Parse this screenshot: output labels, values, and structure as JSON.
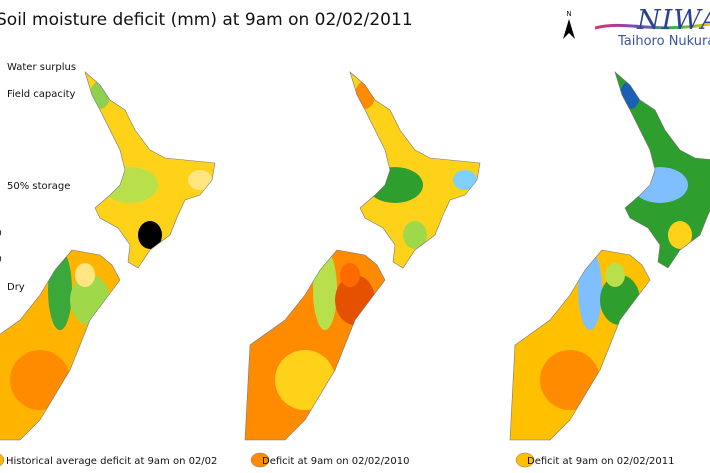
{
  "title": "Soil moisture deficit (mm) at  9am on 02/02/2011",
  "legend": {
    "items": [
      "Water surplus",
      "Field capacity",
      "50% storage",
      "Dry"
    ],
    "partial_ticks": [
      "0",
      "0"
    ]
  },
  "logo": {
    "brand": "NIWA",
    "tagline": "Taihoro Nukurangi",
    "north_label": "N"
  },
  "maps": [
    {
      "caption": "Historical average deficit at 9am on 02/02",
      "ni_base": "#ffd21a",
      "si_base": "#ffb400",
      "ni_patches": [
        "#b8e04a",
        "#ffe680",
        "#8fd14f"
      ],
      "si_patches": [
        "#3aa83a",
        "#9fd94a",
        "#ff8c00",
        "#ffe680"
      ]
    },
    {
      "caption": "Deficit at  9am on 02/02/2010",
      "ni_base": "#ffd21a",
      "si_base": "#ff8c00",
      "ni_patches": [
        "#2e9e2e",
        "#7fd0ff",
        "#ff8c00",
        "#9fd94a"
      ],
      "si_patches": [
        "#b8e04a",
        "#e65100",
        "#ffd21a",
        "#ff6a00"
      ]
    },
    {
      "caption": "Deficit at  9am on 02/02/2011",
      "ni_base": "#2e9e2e",
      "si_base": "#ffc000",
      "ni_patches": [
        "#7fbfff",
        "#9fd94a",
        "#1a5fb4",
        "#ffd21a"
      ],
      "si_patches": [
        "#7fbfff",
        "#2e9e2e",
        "#ff8c00",
        "#b8e04a"
      ]
    }
  ]
}
